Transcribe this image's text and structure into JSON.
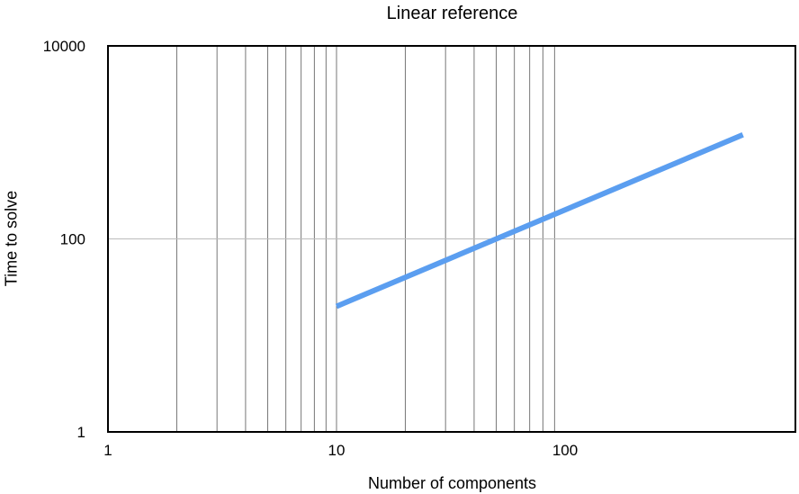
{
  "chart_data": {
    "type": "line",
    "title": "Linear reference",
    "xlabel": "Number of components",
    "ylabel": "Time to solve",
    "x_scale": "log",
    "y_scale": "log",
    "xlim": [
      1,
      1000
    ],
    "ylim": [
      1,
      10000
    ],
    "x_ticks": [
      "1",
      "10",
      "100"
    ],
    "y_ticks": [
      "1",
      "100",
      "10000"
    ],
    "grid": true,
    "series": [
      {
        "color": "#5b9ef0",
        "x": [
          10,
          600
        ],
        "y": [
          20,
          1200
        ]
      }
    ]
  }
}
